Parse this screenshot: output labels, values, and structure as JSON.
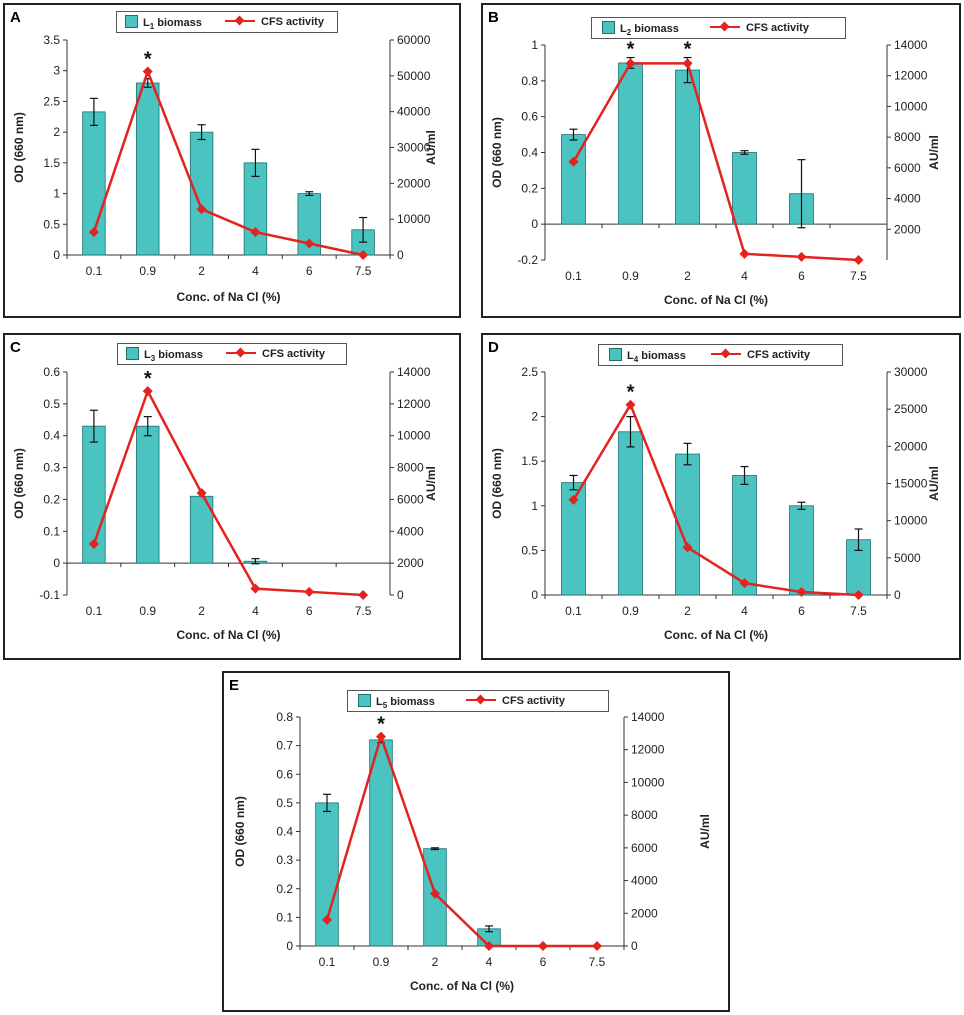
{
  "colors": {
    "bar": "#4ac3c1",
    "bar_edge": "#1f6f6e",
    "line": "#e3231f",
    "axis": "#333333"
  },
  "chart_data": [
    {
      "type": "bar",
      "panel": "A",
      "legend_bar_main": "L",
      "legend_bar_sub": "1",
      "legend_bar_rest": " biomass",
      "legend_line": "CFS activity",
      "categories": [
        "0.1",
        "0.9",
        "2",
        "4",
        "6",
        "7.5"
      ],
      "series": [
        {
          "name": "L1 biomass",
          "axis": "left",
          "values": [
            2.33,
            2.8,
            2.0,
            1.5,
            1.0,
            0.41
          ],
          "errors": [
            0.22,
            0.07,
            0.12,
            0.22,
            0.03,
            0.2
          ]
        },
        {
          "name": "CFS activity",
          "axis": "right",
          "values": [
            6400,
            51200,
            12800,
            6400,
            3200,
            0
          ]
        }
      ],
      "xlabel": "Conc. of Na Cl (%)",
      "ylabel": "OD (660 nm)",
      "y2label": "AU/ml",
      "ylim": [
        0,
        3.5
      ],
      "yticks": [
        "0",
        "0.5",
        "1",
        "1.5",
        "2",
        "2.5",
        "3",
        "3.5"
      ],
      "y2lim": [
        0,
        60000
      ],
      "y2ticks": [
        "0",
        "10000",
        "20000",
        "30000",
        "40000",
        "50000",
        "60000"
      ],
      "annotations": [
        {
          "text": "*",
          "category": "0.9"
        }
      ]
    },
    {
      "type": "bar",
      "panel": "B",
      "legend_bar_main": "L",
      "legend_bar_sub": "2",
      "legend_bar_rest": " biomass",
      "legend_line": "CFS activity",
      "categories": [
        "0.1",
        "0.9",
        "2",
        "4",
        "6",
        "7.5"
      ],
      "series": [
        {
          "name": "L2 biomass",
          "axis": "left",
          "values": [
            0.5,
            0.9,
            0.86,
            0.4,
            0.17,
            0
          ],
          "errors": [
            0.03,
            0.03,
            0.07,
            0.01,
            0.19,
            0
          ]
        },
        {
          "name": "CFS activity",
          "axis": "right",
          "values": [
            6400,
            12800,
            12800,
            400,
            200,
            0
          ]
        }
      ],
      "xlabel": "Conc. of Na Cl (%)",
      "ylabel": "OD (660 nm)",
      "y2label": "AU/ml",
      "ylim": [
        -0.2,
        1
      ],
      "yticks": [
        "-0.2",
        "0",
        "0.2",
        "0.4",
        "0.6",
        "0.8",
        "1"
      ],
      "y2lim": [
        0,
        14000
      ],
      "y2ticks": [
        "2000",
        "4000",
        "6000",
        "8000",
        "10000",
        "12000",
        "14000"
      ],
      "annotations": [
        {
          "text": "*",
          "category": "0.9"
        },
        {
          "text": "*",
          "category": "2"
        }
      ]
    },
    {
      "type": "bar",
      "panel": "C",
      "legend_bar_main": "L",
      "legend_bar_sub": "3",
      "legend_bar_rest": " biomass",
      "legend_line": "CFS activity",
      "categories": [
        "0.1",
        "0.9",
        "2",
        "4",
        "6",
        "7.5"
      ],
      "series": [
        {
          "name": "L3 biomass",
          "axis": "left",
          "values": [
            0.43,
            0.43,
            0.21,
            0.006,
            0,
            0
          ],
          "errors": [
            0.05,
            0.03,
            0,
            0.008,
            0,
            0
          ]
        },
        {
          "name": "CFS activity",
          "axis": "right",
          "values": [
            3200,
            12800,
            6400,
            400,
            200,
            0
          ]
        }
      ],
      "xlabel": "Conc. of Na Cl (%)",
      "ylabel": "OD (660 nm)",
      "y2label": "AU/ml",
      "ylim": [
        -0.1,
        0.6
      ],
      "yticks": [
        "-0.1",
        "0",
        "0.1",
        "0.2",
        "0.3",
        "0.4",
        "0.5",
        "0.6"
      ],
      "y2lim": [
        0,
        14000
      ],
      "y2ticks": [
        "0",
        "2000",
        "4000",
        "6000",
        "8000",
        "10000",
        "12000",
        "14000"
      ],
      "annotations": [
        {
          "text": "*",
          "category": "0.9"
        }
      ]
    },
    {
      "type": "bar",
      "panel": "D",
      "legend_bar_main": "L",
      "legend_bar_sub": "4",
      "legend_bar_rest": " biomass",
      "legend_line": "CFS activity",
      "categories": [
        "0.1",
        "0.9",
        "2",
        "4",
        "6",
        "7.5"
      ],
      "series": [
        {
          "name": "L4 biomass",
          "axis": "left",
          "values": [
            1.26,
            1.83,
            1.58,
            1.34,
            1.0,
            0.62
          ],
          "errors": [
            0.08,
            0.17,
            0.12,
            0.1,
            0.04,
            0.12
          ]
        },
        {
          "name": "CFS activity",
          "axis": "right",
          "values": [
            12800,
            25600,
            6400,
            1600,
            400,
            0
          ]
        }
      ],
      "xlabel": "Conc. of Na Cl (%)",
      "ylabel": "OD (660 nm)",
      "y2label": "AU/ml",
      "ylim": [
        0,
        2.5
      ],
      "yticks": [
        "0",
        "0.5",
        "1",
        "1.5",
        "2",
        "2.5"
      ],
      "y2lim": [
        0,
        30000
      ],
      "y2ticks": [
        "0",
        "5000",
        "10000",
        "15000",
        "20000",
        "25000",
        "30000"
      ],
      "annotations": [
        {
          "text": "*",
          "category": "0.9"
        }
      ]
    },
    {
      "type": "bar",
      "panel": "E",
      "legend_bar_main": "L",
      "legend_bar_sub": "5",
      "legend_bar_rest": " biomass",
      "legend_line": "CFS activity",
      "categories": [
        "0.1",
        "0.9",
        "2",
        "4",
        "6",
        "7.5"
      ],
      "series": [
        {
          "name": "L5 biomass",
          "axis": "left",
          "values": [
            0.5,
            0.72,
            0.34,
            0.06,
            0,
            0
          ],
          "errors": [
            0.03,
            0.01,
            0.003,
            0.01,
            0,
            0
          ]
        },
        {
          "name": "CFS activity",
          "axis": "right",
          "values": [
            1600,
            12800,
            3200,
            0,
            0,
            0
          ]
        }
      ],
      "xlabel": "Conc. of Na Cl (%)",
      "ylabel": "OD (660 nm)",
      "y2label": "AU/ml",
      "ylim": [
        0,
        0.8
      ],
      "yticks": [
        "0",
        "0.1",
        "0.2",
        "0.3",
        "0.4",
        "0.5",
        "0.6",
        "0.7",
        "0.8"
      ],
      "y2lim": [
        0,
        14000
      ],
      "y2ticks": [
        "0",
        "2000",
        "4000",
        "6000",
        "8000",
        "10000",
        "12000",
        "14000"
      ],
      "annotations": [
        {
          "text": "*",
          "category": "0.9"
        }
      ]
    }
  ]
}
